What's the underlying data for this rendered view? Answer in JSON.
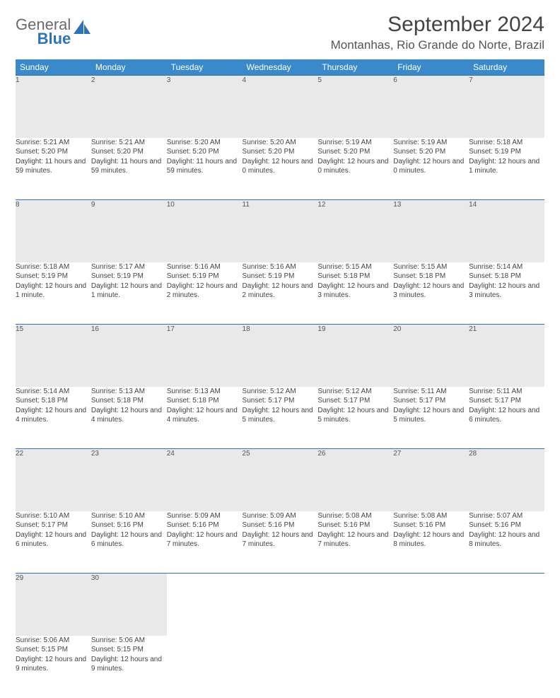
{
  "brand": {
    "word1": "General",
    "word2": "Blue"
  },
  "title": "September 2024",
  "location": "Montanhas, Rio Grande do Norte, Brazil",
  "colors": {
    "header_bg": "#3a8acb",
    "header_text": "#ffffff",
    "daynum_bg": "#e9e9e9",
    "rule": "#2d73b8",
    "text": "#444444"
  },
  "typography": {
    "title_fontsize": 30,
    "location_fontsize": 17,
    "weekday_fontsize": 12,
    "daynum_fontsize": 11,
    "cell_fontsize": 10
  },
  "weekdays": [
    "Sunday",
    "Monday",
    "Tuesday",
    "Wednesday",
    "Thursday",
    "Friday",
    "Saturday"
  ],
  "weeks": [
    [
      {
        "n": "1",
        "sr": "Sunrise: 5:21 AM",
        "ss": "Sunset: 5:20 PM",
        "dl": "Daylight: 11 hours and 59 minutes."
      },
      {
        "n": "2",
        "sr": "Sunrise: 5:21 AM",
        "ss": "Sunset: 5:20 PM",
        "dl": "Daylight: 11 hours and 59 minutes."
      },
      {
        "n": "3",
        "sr": "Sunrise: 5:20 AM",
        "ss": "Sunset: 5:20 PM",
        "dl": "Daylight: 11 hours and 59 minutes."
      },
      {
        "n": "4",
        "sr": "Sunrise: 5:20 AM",
        "ss": "Sunset: 5:20 PM",
        "dl": "Daylight: 12 hours and 0 minutes."
      },
      {
        "n": "5",
        "sr": "Sunrise: 5:19 AM",
        "ss": "Sunset: 5:20 PM",
        "dl": "Daylight: 12 hours and 0 minutes."
      },
      {
        "n": "6",
        "sr": "Sunrise: 5:19 AM",
        "ss": "Sunset: 5:20 PM",
        "dl": "Daylight: 12 hours and 0 minutes."
      },
      {
        "n": "7",
        "sr": "Sunrise: 5:18 AM",
        "ss": "Sunset: 5:19 PM",
        "dl": "Daylight: 12 hours and 1 minute."
      }
    ],
    [
      {
        "n": "8",
        "sr": "Sunrise: 5:18 AM",
        "ss": "Sunset: 5:19 PM",
        "dl": "Daylight: 12 hours and 1 minute."
      },
      {
        "n": "9",
        "sr": "Sunrise: 5:17 AM",
        "ss": "Sunset: 5:19 PM",
        "dl": "Daylight: 12 hours and 1 minute."
      },
      {
        "n": "10",
        "sr": "Sunrise: 5:16 AM",
        "ss": "Sunset: 5:19 PM",
        "dl": "Daylight: 12 hours and 2 minutes."
      },
      {
        "n": "11",
        "sr": "Sunrise: 5:16 AM",
        "ss": "Sunset: 5:19 PM",
        "dl": "Daylight: 12 hours and 2 minutes."
      },
      {
        "n": "12",
        "sr": "Sunrise: 5:15 AM",
        "ss": "Sunset: 5:18 PM",
        "dl": "Daylight: 12 hours and 3 minutes."
      },
      {
        "n": "13",
        "sr": "Sunrise: 5:15 AM",
        "ss": "Sunset: 5:18 PM",
        "dl": "Daylight: 12 hours and 3 minutes."
      },
      {
        "n": "14",
        "sr": "Sunrise: 5:14 AM",
        "ss": "Sunset: 5:18 PM",
        "dl": "Daylight: 12 hours and 3 minutes."
      }
    ],
    [
      {
        "n": "15",
        "sr": "Sunrise: 5:14 AM",
        "ss": "Sunset: 5:18 PM",
        "dl": "Daylight: 12 hours and 4 minutes."
      },
      {
        "n": "16",
        "sr": "Sunrise: 5:13 AM",
        "ss": "Sunset: 5:18 PM",
        "dl": "Daylight: 12 hours and 4 minutes."
      },
      {
        "n": "17",
        "sr": "Sunrise: 5:13 AM",
        "ss": "Sunset: 5:18 PM",
        "dl": "Daylight: 12 hours and 4 minutes."
      },
      {
        "n": "18",
        "sr": "Sunrise: 5:12 AM",
        "ss": "Sunset: 5:17 PM",
        "dl": "Daylight: 12 hours and 5 minutes."
      },
      {
        "n": "19",
        "sr": "Sunrise: 5:12 AM",
        "ss": "Sunset: 5:17 PM",
        "dl": "Daylight: 12 hours and 5 minutes."
      },
      {
        "n": "20",
        "sr": "Sunrise: 5:11 AM",
        "ss": "Sunset: 5:17 PM",
        "dl": "Daylight: 12 hours and 5 minutes."
      },
      {
        "n": "21",
        "sr": "Sunrise: 5:11 AM",
        "ss": "Sunset: 5:17 PM",
        "dl": "Daylight: 12 hours and 6 minutes."
      }
    ],
    [
      {
        "n": "22",
        "sr": "Sunrise: 5:10 AM",
        "ss": "Sunset: 5:17 PM",
        "dl": "Daylight: 12 hours and 6 minutes."
      },
      {
        "n": "23",
        "sr": "Sunrise: 5:10 AM",
        "ss": "Sunset: 5:16 PM",
        "dl": "Daylight: 12 hours and 6 minutes."
      },
      {
        "n": "24",
        "sr": "Sunrise: 5:09 AM",
        "ss": "Sunset: 5:16 PM",
        "dl": "Daylight: 12 hours and 7 minutes."
      },
      {
        "n": "25",
        "sr": "Sunrise: 5:09 AM",
        "ss": "Sunset: 5:16 PM",
        "dl": "Daylight: 12 hours and 7 minutes."
      },
      {
        "n": "26",
        "sr": "Sunrise: 5:08 AM",
        "ss": "Sunset: 5:16 PM",
        "dl": "Daylight: 12 hours and 7 minutes."
      },
      {
        "n": "27",
        "sr": "Sunrise: 5:08 AM",
        "ss": "Sunset: 5:16 PM",
        "dl": "Daylight: 12 hours and 8 minutes."
      },
      {
        "n": "28",
        "sr": "Sunrise: 5:07 AM",
        "ss": "Sunset: 5:16 PM",
        "dl": "Daylight: 12 hours and 8 minutes."
      }
    ],
    [
      {
        "n": "29",
        "sr": "Sunrise: 5:06 AM",
        "ss": "Sunset: 5:15 PM",
        "dl": "Daylight: 12 hours and 9 minutes."
      },
      {
        "n": "30",
        "sr": "Sunrise: 5:06 AM",
        "ss": "Sunset: 5:15 PM",
        "dl": "Daylight: 12 hours and 9 minutes."
      },
      null,
      null,
      null,
      null,
      null
    ]
  ]
}
